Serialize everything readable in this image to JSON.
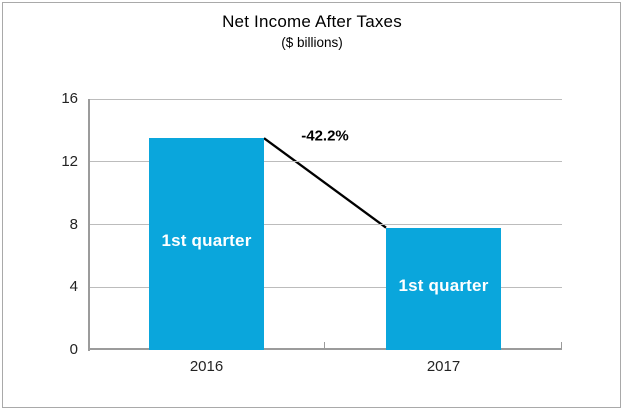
{
  "window": {
    "background": "#ffffff",
    "frame_border_color": "#a9a9a9"
  },
  "chart_data": {
    "type": "bar",
    "title": "Net Income After Taxes",
    "subtitle": "($ billions)",
    "categories": [
      "2016",
      "2017"
    ],
    "values": [
      13.5,
      7.8
    ],
    "bar_labels": [
      "1st quarter",
      "1st quarter"
    ],
    "annotation": {
      "label": "-42.2%",
      "connects": [
        0,
        1
      ],
      "line_color": "#000000"
    },
    "ylim": [
      0,
      16
    ],
    "yticks": [
      0,
      4,
      8,
      12,
      16
    ],
    "xlabel": "",
    "ylabel": "",
    "grid": "horizontal",
    "legend": "none",
    "bar_color": "#0aa6dc",
    "bar_label_color": "#ffffff",
    "grid_color": "#bcbcbc",
    "axis_color": "#9b9b9b",
    "text_color": "#232323"
  }
}
